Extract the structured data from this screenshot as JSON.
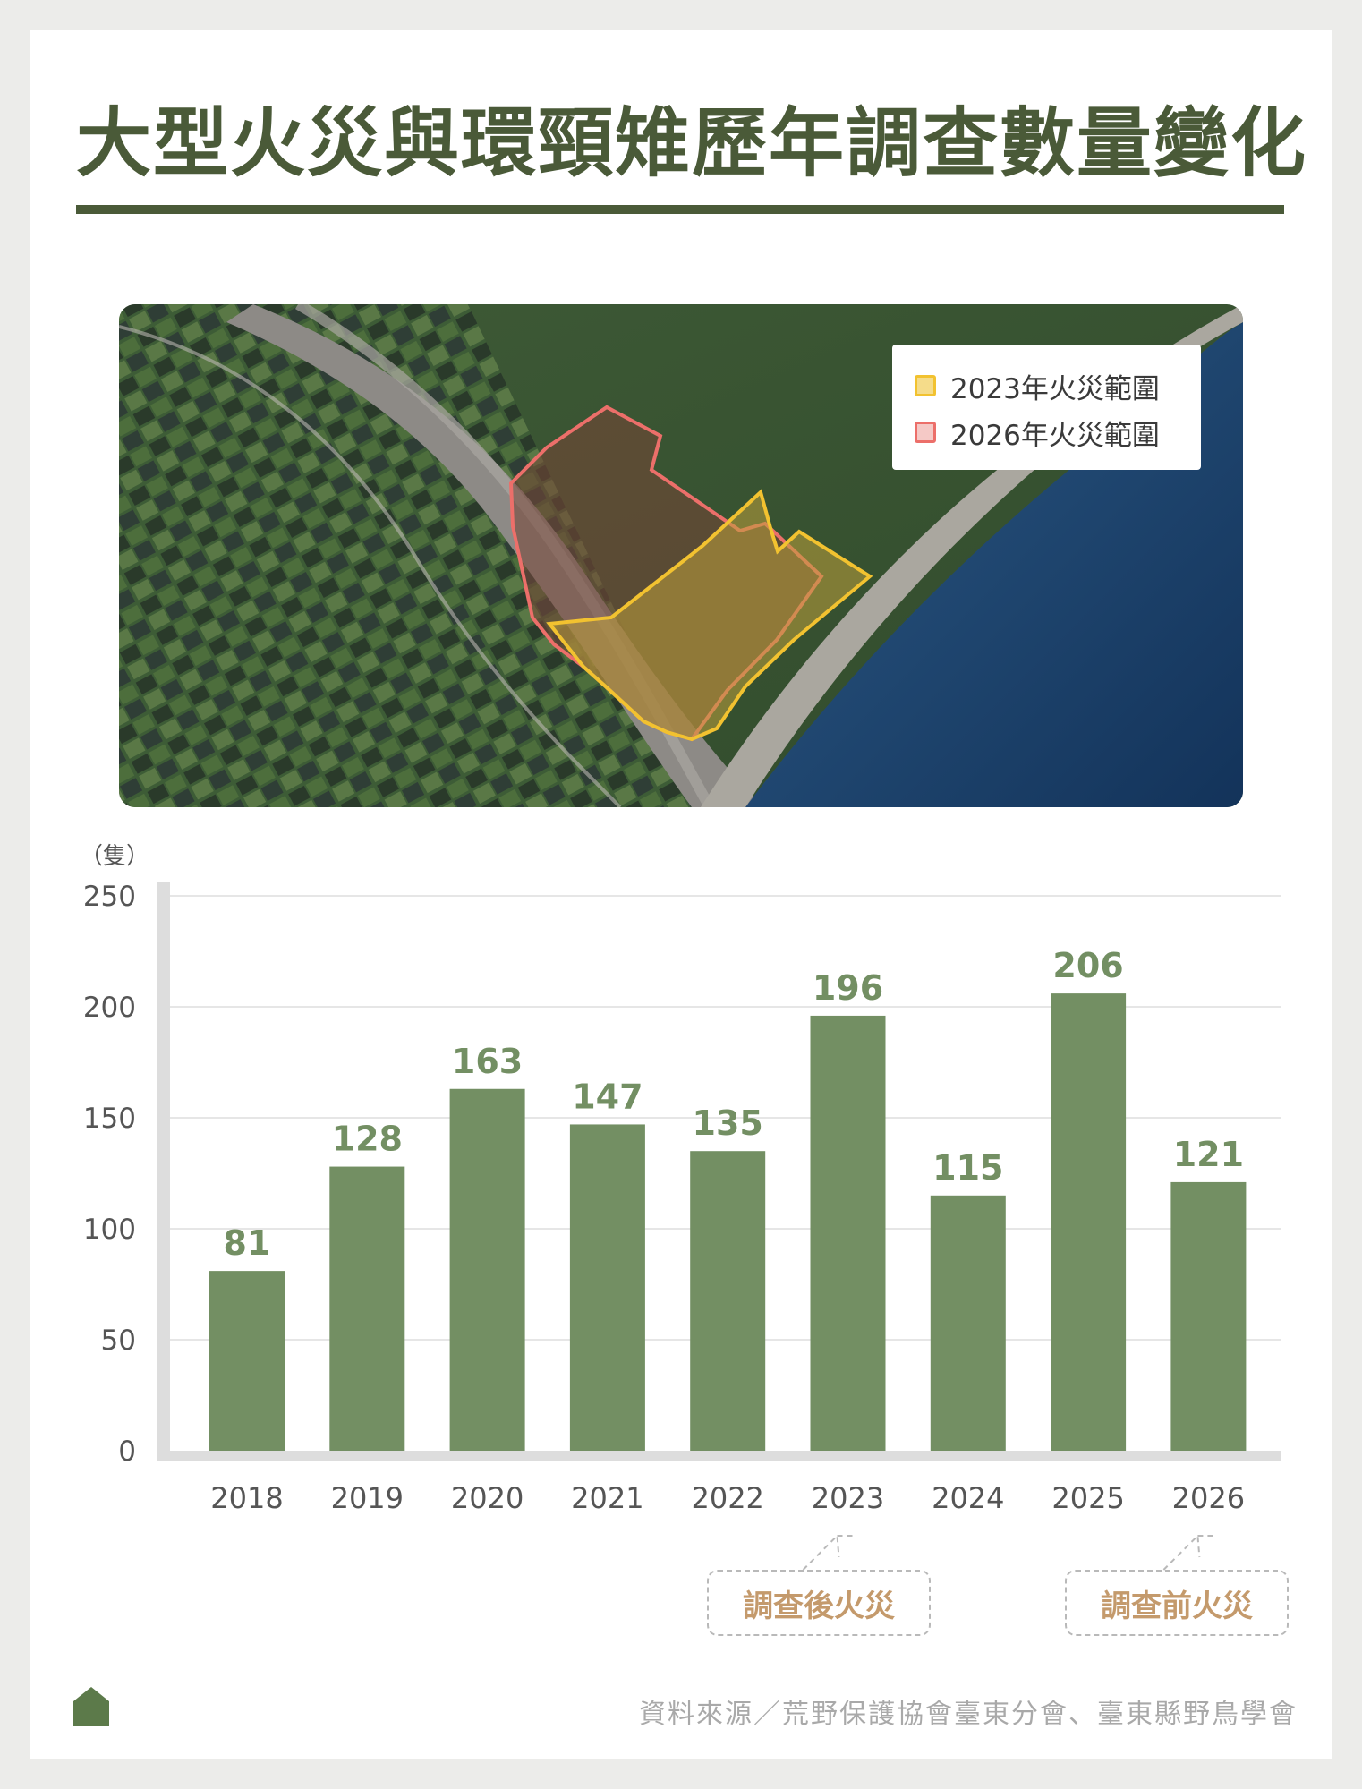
{
  "title": "大型火災與環頸雉歷年調查數量變化",
  "map": {
    "legend": [
      {
        "label": "2023年火災範圍",
        "fill": "#f5dc8a",
        "stroke": "#f2c230"
      },
      {
        "label": "2026年火災範圍",
        "fill": "#f5c9c6",
        "stroke": "#ec6f6a"
      }
    ]
  },
  "chart_data": {
    "type": "bar",
    "unit_label": "（隻）",
    "categories": [
      "2018",
      "2019",
      "2020",
      "2021",
      "2022",
      "2023",
      "2024",
      "2025",
      "2026"
    ],
    "values": [
      81,
      128,
      163,
      147,
      135,
      196,
      115,
      206,
      121
    ],
    "yticks": [
      0,
      50,
      100,
      150,
      200,
      250
    ],
    "ylim": [
      0,
      250
    ],
    "bar_color": "#738f63",
    "grid": true,
    "annotations": [
      {
        "year": "2023",
        "text": "調查後火災"
      },
      {
        "year": "2026",
        "text": "調查前火災"
      }
    ]
  },
  "footer": {
    "source": "資料來源／荒野保護協會臺東分會、臺東縣野鳥學會",
    "icon": "home-icon"
  },
  "colors": {
    "title": "#4a5a38",
    "annotation_text": "#c49a6c",
    "source_text": "#a9a9a9"
  }
}
